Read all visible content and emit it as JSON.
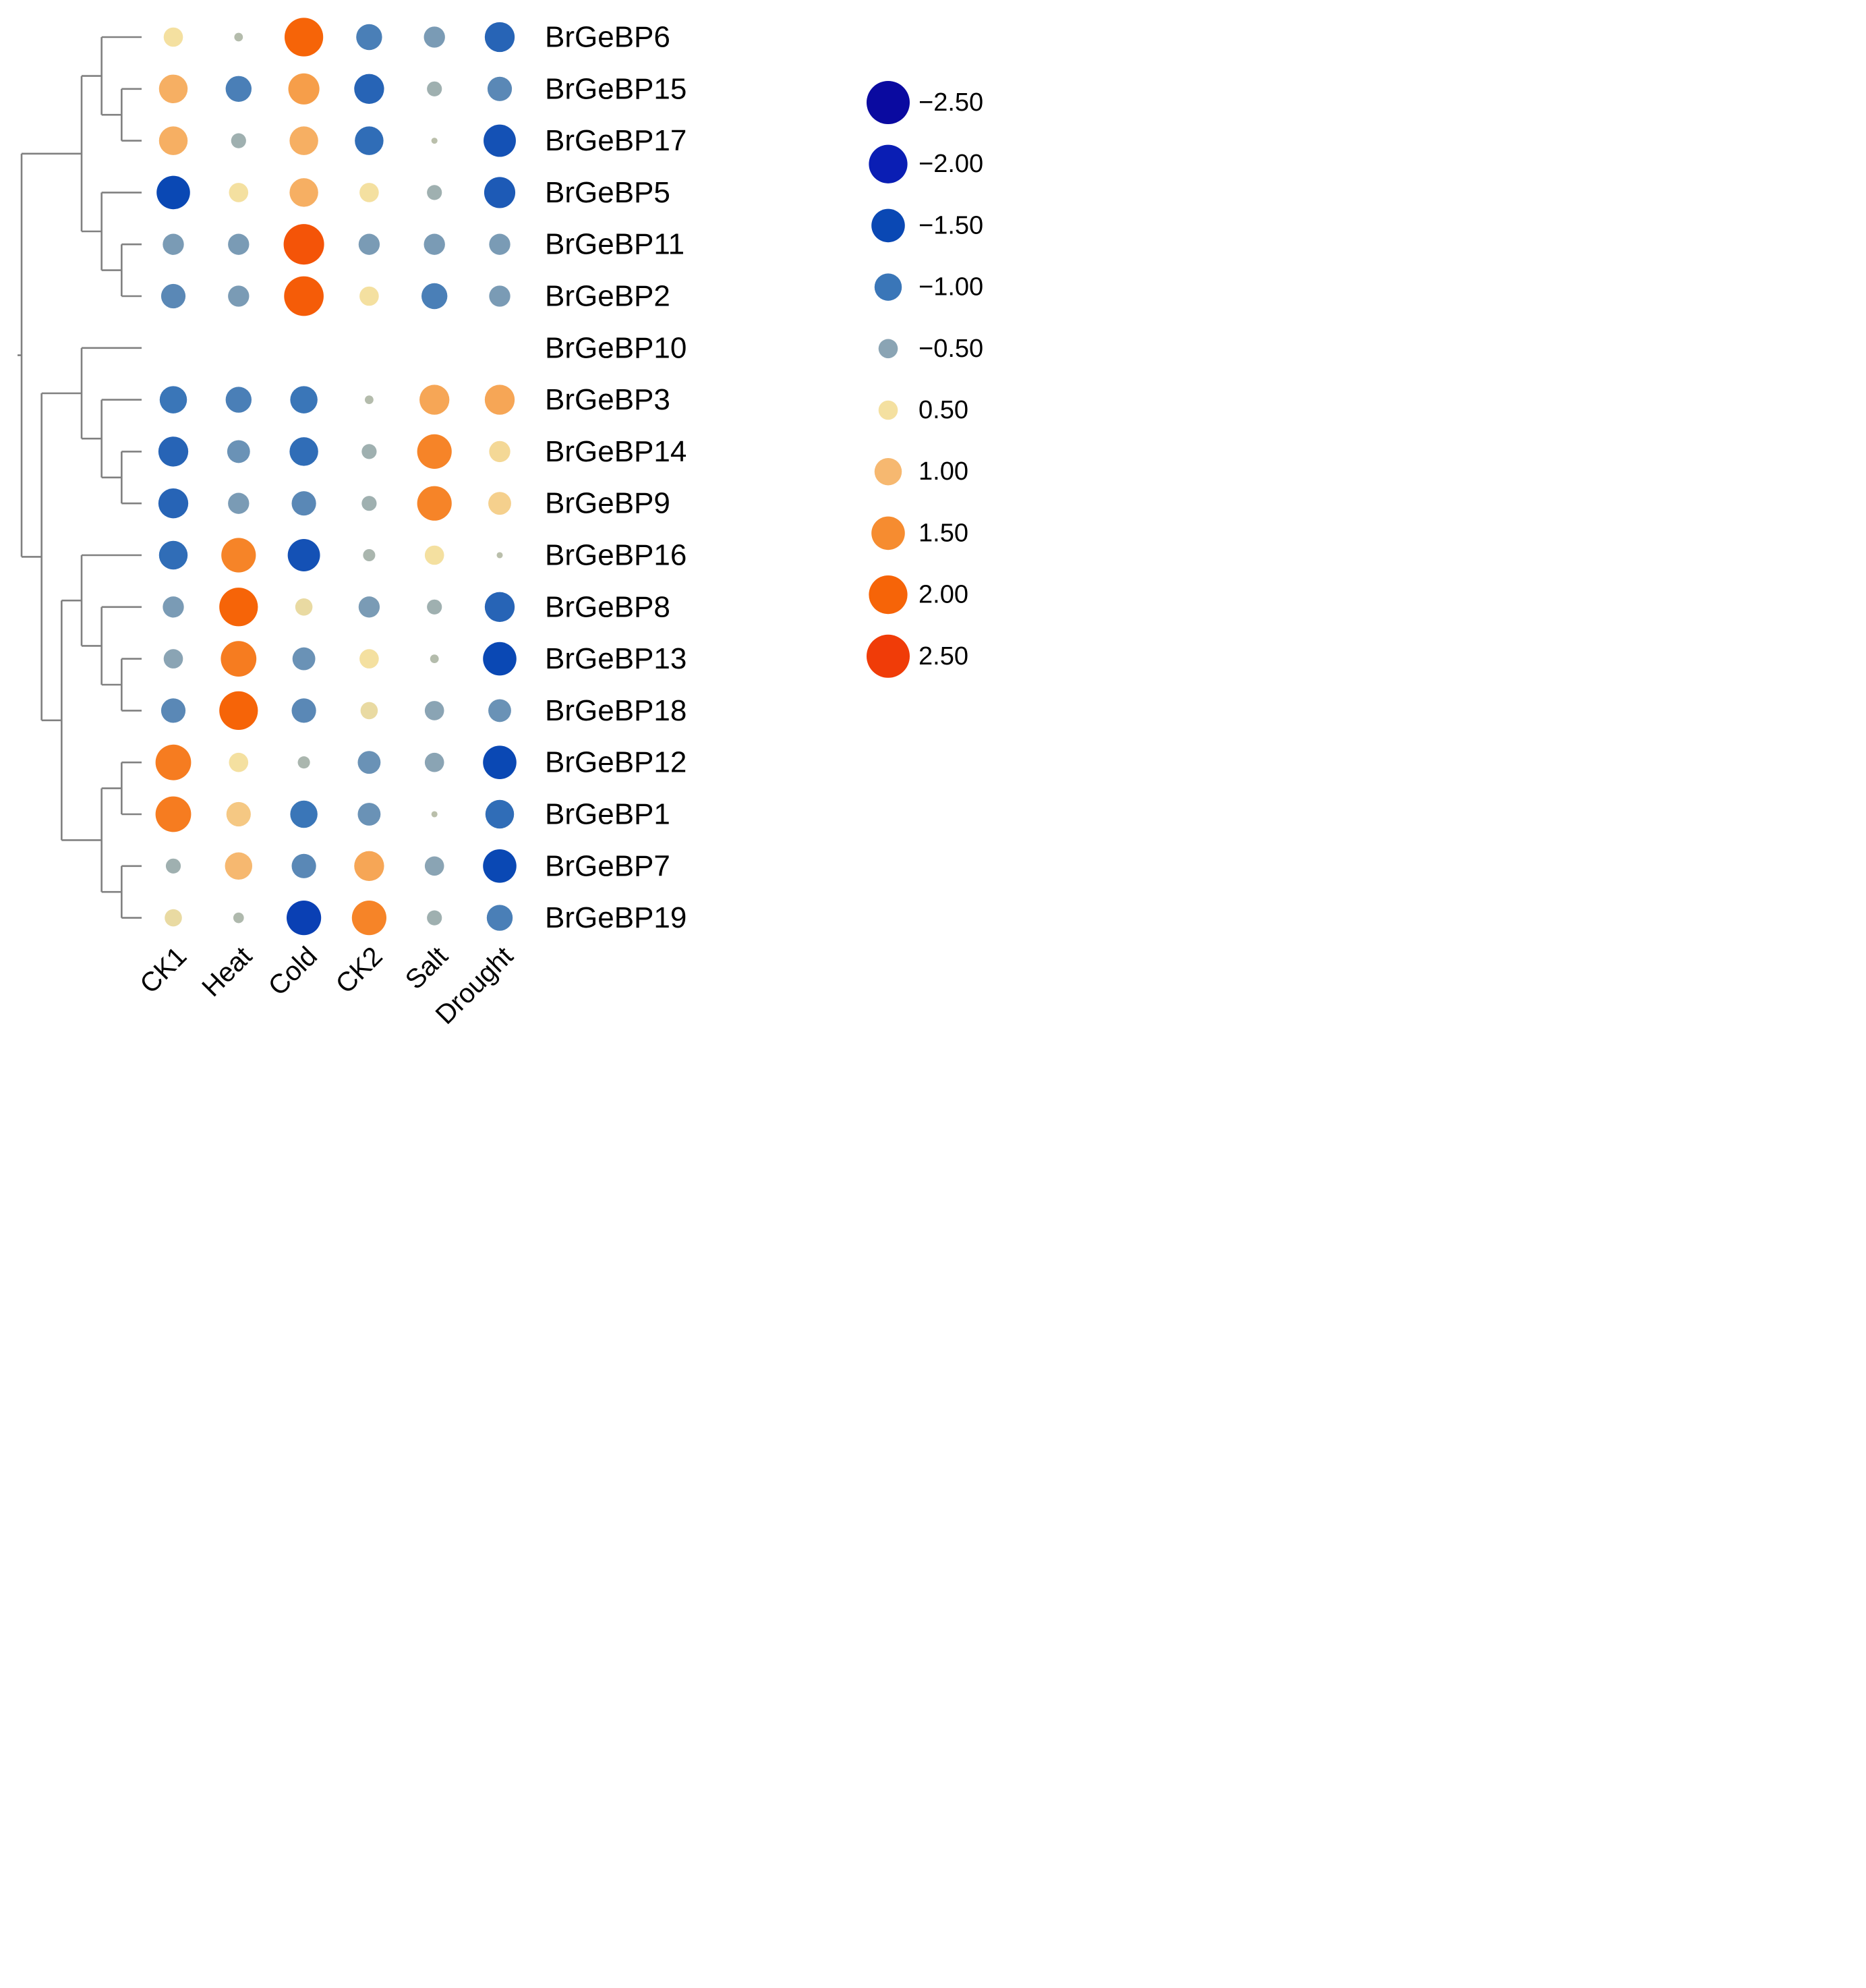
{
  "chart_data": {
    "type": "dot-heatmap",
    "columns": [
      "CK1",
      "Heat",
      "Cold",
      "CK2",
      "Salt",
      "Drought"
    ],
    "rows": [
      {
        "gene": "BrGeBP6",
        "values": [
          0.5,
          -0.1,
          2.0,
          -0.9,
          -0.6,
          -1.2
        ]
      },
      {
        "gene": "BrGeBP15",
        "values": [
          1.1,
          -0.9,
          1.3,
          -1.2,
          -0.3,
          -0.8
        ]
      },
      {
        "gene": "BrGeBP17",
        "values": [
          1.1,
          -0.3,
          1.1,
          -1.1,
          -0.05,
          -1.4
        ]
      },
      {
        "gene": "BrGeBP5",
        "values": [
          -1.5,
          0.5,
          1.1,
          0.5,
          -0.3,
          -1.3
        ]
      },
      {
        "gene": "BrGeBP11",
        "values": [
          -0.6,
          -0.6,
          2.2,
          -0.6,
          -0.6,
          -0.6
        ]
      },
      {
        "gene": "BrGeBP2",
        "values": [
          -0.8,
          -0.6,
          2.1,
          0.5,
          -0.9,
          -0.6
        ]
      },
      {
        "gene": "BrGeBP10",
        "values": [
          null,
          null,
          null,
          null,
          null,
          null
        ]
      },
      {
        "gene": "BrGeBP3",
        "values": [
          -1.0,
          -0.9,
          -1.0,
          -0.1,
          1.2,
          1.2
        ]
      },
      {
        "gene": "BrGeBP14",
        "values": [
          -1.2,
          -0.7,
          -1.1,
          -0.3,
          1.6,
          0.6
        ]
      },
      {
        "gene": "BrGeBP9",
        "values": [
          -1.2,
          -0.6,
          -0.8,
          -0.3,
          1.6,
          0.7
        ]
      },
      {
        "gene": "BrGeBP16",
        "values": [
          -1.1,
          1.6,
          -1.4,
          -0.2,
          0.5,
          -0.05
        ]
      },
      {
        "gene": "BrGeBP8",
        "values": [
          -0.6,
          2.0,
          0.4,
          -0.6,
          -0.3,
          -1.2
        ]
      },
      {
        "gene": "BrGeBP13",
        "values": [
          -0.5,
          1.7,
          -0.7,
          0.5,
          -0.1,
          -1.5
        ]
      },
      {
        "gene": "BrGeBP18",
        "values": [
          -0.8,
          2.0,
          -0.8,
          0.4,
          -0.5,
          -0.7
        ]
      },
      {
        "gene": "BrGeBP12",
        "values": [
          1.7,
          0.5,
          -0.2,
          -0.7,
          -0.5,
          -1.5
        ]
      },
      {
        "gene": "BrGeBP1",
        "values": [
          1.7,
          0.8,
          -1.0,
          -0.7,
          -0.05,
          -1.1
        ]
      },
      {
        "gene": "BrGeBP7",
        "values": [
          -0.3,
          1.0,
          -0.8,
          1.2,
          -0.5,
          -1.5
        ]
      },
      {
        "gene": "BrGeBP19",
        "values": [
          0.4,
          -0.15,
          -1.6,
          1.6,
          -0.3,
          -0.9
        ]
      }
    ],
    "legend": {
      "entries": [
        {
          "label": "−2.50",
          "value": -2.5,
          "color": "#0a0aa0"
        },
        {
          "label": "−2.00",
          "value": -2.0,
          "color": "#0a1eb4"
        },
        {
          "label": "−1.50",
          "value": -1.5,
          "color": "#0a48b4"
        },
        {
          "label": "−1.00",
          "value": -1.0,
          "color": "#3a76b8"
        },
        {
          "label": "−0.50",
          "value": -0.5,
          "color": "#8aa4b4"
        },
        {
          "label": "0.50",
          "value": 0.5,
          "color": "#f4e0a0"
        },
        {
          "label": "1.00",
          "value": 1.0,
          "color": "#f6b870"
        },
        {
          "label": "1.50",
          "value": 1.5,
          "color": "#f68c30"
        },
        {
          "label": "2.00",
          "value": 2.0,
          "color": "#f66408"
        },
        {
          "label": "2.50",
          "value": 2.5,
          "color": "#f03c08"
        }
      ],
      "placement": "right"
    },
    "dendrogram": {
      "orientation": "left",
      "leaf_order": [
        "BrGeBP6",
        "BrGeBP15",
        "BrGeBP17",
        "BrGeBP5",
        "BrGeBP11",
        "BrGeBP2",
        "BrGeBP10",
        "BrGeBP3",
        "BrGeBP14",
        "BrGeBP9",
        "BrGeBP16",
        "BrGeBP8",
        "BrGeBP13",
        "BrGeBP18",
        "BrGeBP12",
        "BrGeBP1",
        "BrGeBP7",
        "BrGeBP19"
      ],
      "tree": [
        [
          [
            "BrGeBP6",
            [
              "BrGeBP15",
              "BrGeBP17"
            ]
          ],
          [
            "BrGeBP5",
            [
              "BrGeBP11",
              "BrGeBP2"
            ]
          ]
        ],
        [
          [
            "BrGeBP10",
            [
              "BrGeBP3",
              [
                "BrGeBP14",
                "BrGeBP9"
              ]
            ]
          ],
          [
            [
              "BrGeBP16",
              [
                "BrGeBP8",
                [
                  "BrGeBP13",
                  "BrGeBP18"
                ]
              ]
            ],
            [
              [
                "BrGeBP12",
                "BrGeBP1"
              ],
              [
                "BrGeBP7",
                "BrGeBP19"
              ]
            ]
          ]
        ]
      ],
      "line_color": "#808080"
    },
    "size_encoding": "absolute value",
    "color_encoding": "diverging blue (negative) to orange-red (positive)"
  }
}
